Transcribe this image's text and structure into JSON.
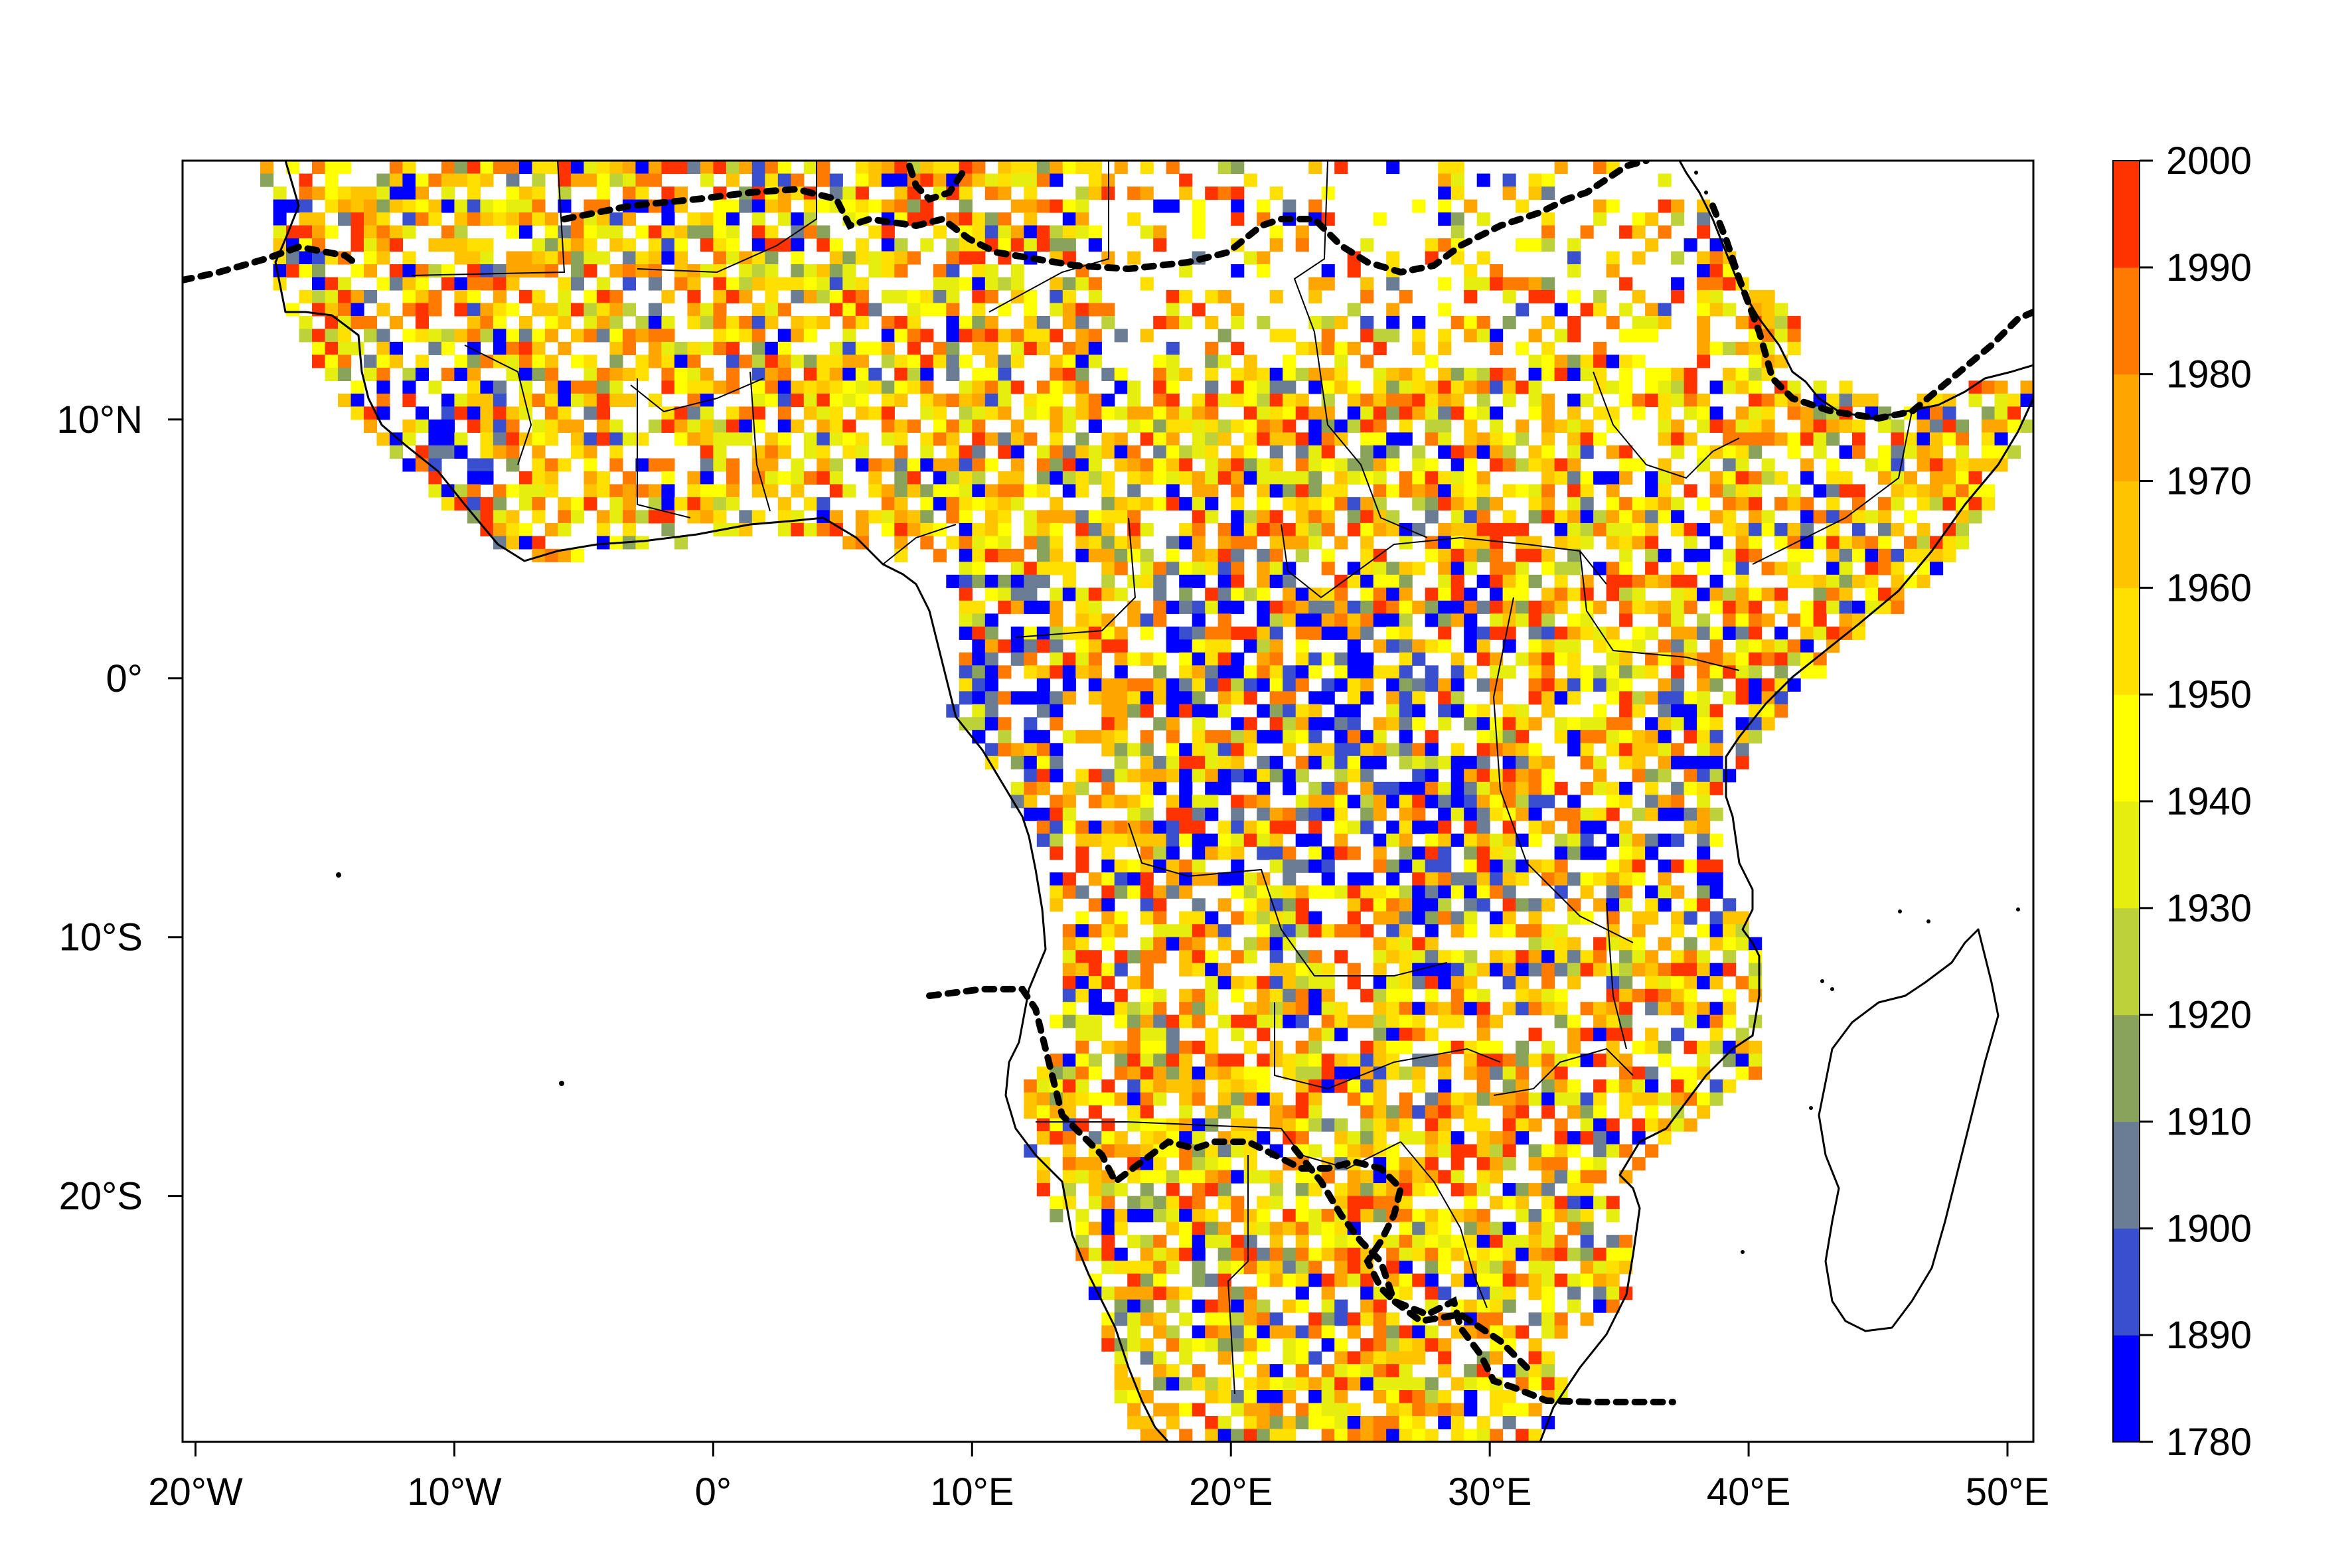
{
  "map": {
    "extent": {
      "lon": [
        -20.5,
        51
      ],
      "lat": [
        -29.5,
        20
      ]
    },
    "x_axis": {
      "ticks": [
        {
          "value": -20,
          "label": "20°W"
        },
        {
          "value": -10,
          "label": "10°W"
        },
        {
          "value": 0,
          "label": "0°"
        },
        {
          "value": 10,
          "label": "10°E"
        },
        {
          "value": 20,
          "label": "20°E"
        },
        {
          "value": 30,
          "label": "30°E"
        },
        {
          "value": 40,
          "label": "40°E"
        },
        {
          "value": 50,
          "label": "50°E"
        }
      ]
    },
    "y_axis": {
      "ticks": [
        {
          "value": 10,
          "label": "10°N"
        },
        {
          "value": 0,
          "label": "0°"
        },
        {
          "value": -10,
          "label": "10°S"
        },
        {
          "value": -20,
          "label": "20°S"
        }
      ]
    },
    "colorbar": {
      "breaks": [
        1780,
        1890,
        1900,
        1910,
        1920,
        1930,
        1940,
        1950,
        1960,
        1970,
        1980,
        1990,
        2000
      ],
      "colors": [
        "#0000ff",
        "#3a4fce",
        "#6b7d95",
        "#8aa35a",
        "#bcd13a",
        "#e6ee10",
        "#ffff00",
        "#ffe000",
        "#ffc400",
        "#ffa500",
        "#ff7a00",
        "#ff3300"
      ],
      "labels": [
        "2000",
        "1990",
        "1980",
        "1970",
        "1960",
        "1950",
        "1940",
        "1930",
        "1920",
        "1910",
        "1900",
        "1890",
        "1780"
      ]
    },
    "colors": {
      "coastline": "#000000",
      "country_border": "#000000",
      "dotted_line": "#000000",
      "frame": "#000000"
    }
  }
}
